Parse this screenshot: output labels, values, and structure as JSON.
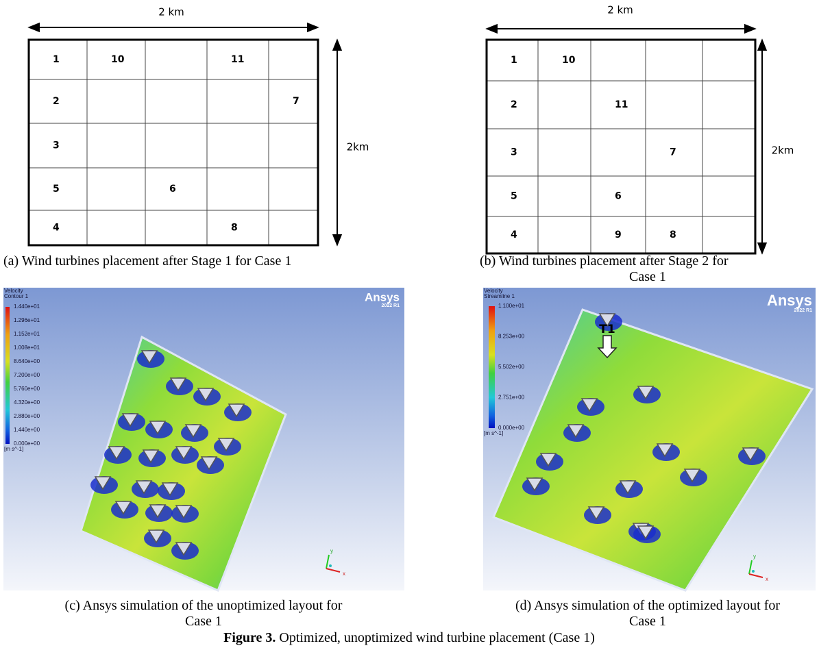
{
  "panels": [
    {
      "width_label": "2 km",
      "height_label": "2km",
      "rows": [
        [
          "1",
          "10",
          null,
          "11",
          null
        ],
        [
          "2",
          null,
          null,
          null,
          "7"
        ],
        [
          "3",
          null,
          null,
          null,
          null
        ],
        [
          "5",
          null,
          "6",
          null,
          null
        ],
        [
          "4",
          null,
          null,
          "8",
          null
        ]
      ],
      "caption": [
        "(a) Wind turbines placement after Stage 1 for Case 1"
      ]
    },
    {
      "width_label": "2 km",
      "height_label": "2km",
      "rows": [
        [
          "1",
          "10",
          null,
          null,
          null
        ],
        [
          "2",
          null,
          "11",
          null,
          null
        ],
        [
          "3",
          null,
          null,
          "7",
          null
        ],
        [
          "5",
          null,
          "6",
          null,
          null
        ],
        [
          "4",
          null,
          "9",
          "8",
          null
        ]
      ],
      "caption": [
        "(b) Wind turbines placement after Stage 2 for",
        "Case 1"
      ]
    },
    {
      "legend_title": [
        "Velocity",
        "Contour 1"
      ],
      "legend_labels": [
        "1.440e+01",
        "1.296e+01",
        "1.152e+01",
        "1.008e+01",
        "8.640e+00",
        "7.200e+00",
        "5.760e+00",
        "4.320e+00",
        "2.880e+00",
        "1.440e+00",
        "0.000e+00"
      ],
      "unit": "[m s^-1]",
      "logo": "Ansys",
      "version": "2022 R1",
      "axes": [
        "y",
        "x"
      ],
      "caption": [
        "(c) Ansys simulation of the unoptimized layout for",
        "Case 1"
      ]
    },
    {
      "legend_title": [
        "Velocity",
        "Streamline 1"
      ],
      "legend_labels": [
        "1.100e+01",
        "8.253e+00",
        "5.502e+00",
        "2.751e+00",
        "0.000e+00"
      ],
      "unit": "[m s^-1]",
      "logo": "Ansys",
      "version": "2022 R1",
      "axes": [
        "y",
        "x"
      ],
      "marker": "T1",
      "caption": [
        "(d) Ansys simulation of the optimized layout for",
        "Case 1"
      ]
    }
  ],
  "figure_caption": {
    "label": "Figure 3.",
    "text": " Optimized, unoptimized wind turbine placement (Case 1)"
  }
}
